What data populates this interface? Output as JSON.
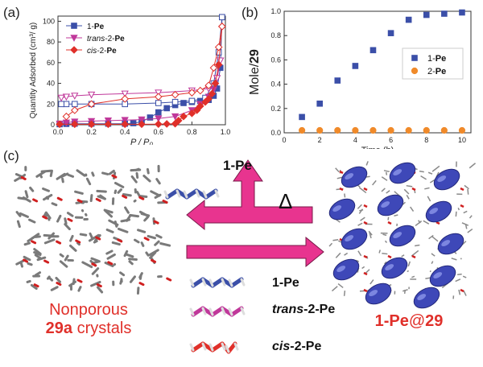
{
  "panels": {
    "a": "(a)",
    "b": "(b)",
    "c": "(c)"
  },
  "chart_data": [
    {
      "type": "scatter",
      "panel": "(a)",
      "ylabel": "Quantity Adsorbed (cm³/ g)",
      "xlabel": "P / P₀",
      "xlim": [
        0,
        1.0
      ],
      "ylim": [
        0,
        105
      ],
      "xticks": [
        "0.0",
        "0.2",
        "0.4",
        "0.6",
        "0.8",
        "1.0"
      ],
      "yticks": [
        "0",
        "20",
        "40",
        "60",
        "80",
        "100"
      ],
      "legend_position": "top-left",
      "series": [
        {
          "name": "1-Pe",
          "color": "#3b4fa8",
          "marker": "square",
          "x": [
            0.01,
            0.05,
            0.1,
            0.2,
            0.3,
            0.4,
            0.45,
            0.5,
            0.55,
            0.6,
            0.65,
            0.7,
            0.75,
            0.8,
            0.85,
            0.9,
            0.93,
            0.95,
            0.97,
            0.98
          ],
          "y": [
            0.5,
            0.8,
            1,
            1,
            1,
            1,
            1.5,
            3,
            7,
            12,
            16,
            19,
            21,
            22,
            23,
            24,
            28,
            35,
            55,
            104
          ],
          "desorption_x": [
            0.98,
            0.96,
            0.93,
            0.88,
            0.8,
            0.7,
            0.6,
            0.4,
            0.2,
            0.1,
            0.05,
            0.02
          ],
          "desorption_y": [
            104,
            70,
            40,
            26,
            23,
            22,
            21,
            20,
            20,
            20,
            20,
            20
          ]
        },
        {
          "name": "trans-2-Pe",
          "color": "#c0389a",
          "marker": "triangle-down",
          "x": [
            0.01,
            0.05,
            0.1,
            0.2,
            0.3,
            0.4,
            0.5,
            0.6,
            0.7,
            0.8,
            0.85,
            0.9,
            0.93,
            0.95,
            0.97
          ],
          "y": [
            1,
            2,
            3,
            3.5,
            4,
            4.5,
            5,
            6,
            8,
            14,
            20,
            27,
            34,
            45,
            62
          ],
          "desorption_x": [
            0.97,
            0.95,
            0.9,
            0.8,
            0.6,
            0.4,
            0.2,
            0.1,
            0.05,
            0.02
          ],
          "desorption_y": [
            62,
            45,
            35,
            33,
            31,
            30,
            29,
            28,
            27,
            26
          ]
        },
        {
          "name": "cis-2-Pe",
          "color": "#e0302a",
          "marker": "diamond",
          "x": [
            0.01,
            0.1,
            0.2,
            0.3,
            0.4,
            0.5,
            0.6,
            0.65,
            0.7,
            0.72,
            0.75,
            0.8,
            0.83,
            0.85,
            0.88,
            0.9,
            0.92,
            0.94,
            0.96,
            0.98
          ],
          "y": [
            0.5,
            0.5,
            0.5,
            0.5,
            0.5,
            0.5,
            0.6,
            0.8,
            1,
            4,
            8,
            11,
            14,
            18,
            22,
            25,
            30,
            40,
            58,
            95
          ],
          "desorption_x": [
            0.98,
            0.96,
            0.93,
            0.9,
            0.85,
            0.8,
            0.7,
            0.6,
            0.4,
            0.2,
            0.1,
            0.05
          ],
          "desorption_y": [
            95,
            75,
            55,
            38,
            33,
            31,
            29,
            27,
            25,
            20,
            14,
            8
          ]
        }
      ]
    },
    {
      "type": "scatter",
      "panel": "(b)",
      "ylabel_prefix": "Mole/",
      "ylabel_bold": "29",
      "xlabel": "Time (h)",
      "xlim": [
        0,
        10.5
      ],
      "ylim": [
        0,
        1.0
      ],
      "xticks": [
        "0",
        "2",
        "4",
        "6",
        "8",
        "10"
      ],
      "yticks": [
        "0.0",
        "0.2",
        "0.4",
        "0.6",
        "0.8",
        "1.0"
      ],
      "legend_position": "right",
      "series": [
        {
          "name": "1-Pe",
          "color": "#3b4fa8",
          "marker": "square",
          "x": [
            1,
            2,
            3,
            4,
            5,
            6,
            7,
            8,
            9,
            10
          ],
          "y": [
            0.13,
            0.24,
            0.43,
            0.55,
            0.68,
            0.82,
            0.93,
            0.97,
            0.98,
            0.99
          ]
        },
        {
          "name": "2-Pe",
          "color": "#f08a2a",
          "marker": "circle",
          "x": [
            1,
            2,
            3,
            4,
            5,
            6,
            7,
            8,
            9,
            10
          ],
          "y": [
            0.02,
            0.02,
            0.02,
            0.02,
            0.02,
            0.02,
            0.02,
            0.02,
            0.02,
            0.02
          ]
        }
      ]
    }
  ],
  "scheme": {
    "top_label": "1-Pe",
    "delta": "Δ",
    "left_caption_line1": "Nonporous",
    "left_caption_bold": "29a",
    "left_caption_rest": " crystals",
    "right_caption_bold": "1-Pe",
    "right_caption_rest": "@",
    "right_caption_num": "29",
    "legend": [
      {
        "italic": "",
        "text": "1-Pe",
        "color": "#3b4fa8"
      },
      {
        "italic": "trans",
        "text": "-2-Pe",
        "color": "#c0389a"
      },
      {
        "italic": "cis",
        "text": "-2-Pe",
        "color": "#e0302a"
      }
    ],
    "arrow_color": "#e8348f"
  }
}
